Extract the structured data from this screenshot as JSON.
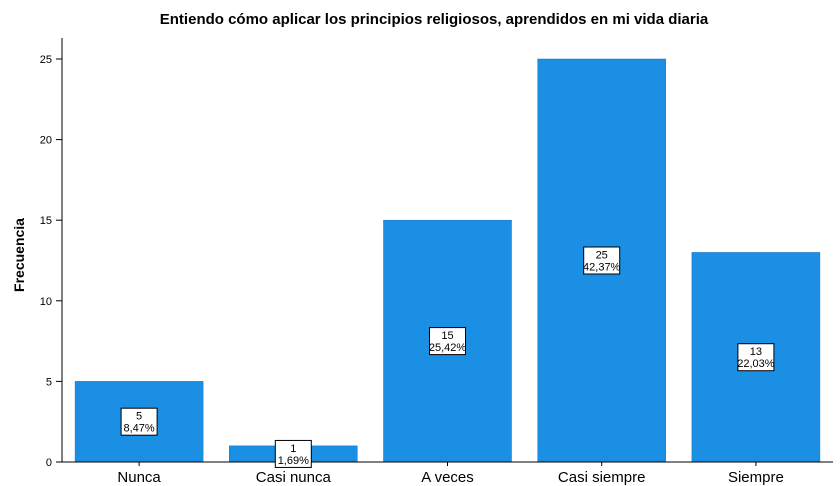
{
  "chart_data": {
    "type": "bar",
    "title": "Entiendo cómo aplicar los principios religiosos, aprendidos en mi vida diaria",
    "xlabel": "",
    "ylabel": "Frecuencia",
    "categories": [
      "Nunca",
      "Casi nunca",
      "A veces",
      "Casi siempre",
      "Siempre"
    ],
    "values": [
      5,
      1,
      15,
      25,
      13
    ],
    "percent_labels": [
      "8,47%",
      "1,69%",
      "25,42%",
      "42,37%",
      "22,03%"
    ],
    "ylim": [
      0,
      26
    ],
    "yticks": [
      0,
      5,
      10,
      15,
      20,
      25
    ],
    "grid": false,
    "bar_color": "#1a8fe3"
  }
}
